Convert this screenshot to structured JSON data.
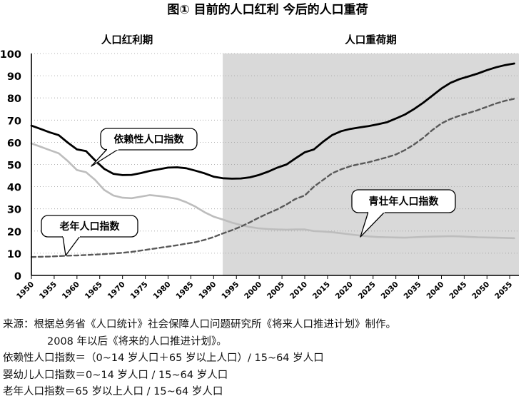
{
  "chart_data": {
    "type": "line",
    "title": "图① 目前的人口红利 今后的人口重荷",
    "period_labels": [
      "人口红利期",
      "人口重荷期"
    ],
    "shaded_from_year": 1992,
    "ylim": [
      0,
      100
    ],
    "yticks": [
      0,
      10,
      20,
      30,
      40,
      50,
      60,
      70,
      80,
      90,
      100
    ],
    "xlim": [
      1950,
      2057
    ],
    "xticks": [
      1950,
      1955,
      1960,
      1965,
      1970,
      1975,
      1980,
      1985,
      1990,
      1995,
      2000,
      2005,
      2010,
      2015,
      2020,
      2025,
      2030,
      2035,
      2040,
      2045,
      2050,
      2055
    ],
    "xtick_labels": [
      "1950",
      "1955",
      "1960",
      "1965",
      "1970",
      "1975",
      "1980",
      "1985",
      "1990",
      "1995",
      "2000",
      "2005",
      "2010",
      "2015",
      "2020",
      "2025",
      "2030",
      "2035",
      "2040",
      "2045",
      "2050",
      "2055"
    ],
    "series": [
      {
        "name": "依赖性人口指数",
        "color": "#000000",
        "style": "solid",
        "x": [
          1950,
          1952,
          1954,
          1956,
          1958,
          1960,
          1962,
          1964,
          1966,
          1968,
          1970,
          1972,
          1974,
          1976,
          1978,
          1980,
          1982,
          1984,
          1986,
          1988,
          1990,
          1992,
          1994,
          1996,
          1998,
          2000,
          2002,
          2004,
          2006,
          2008,
          2010,
          2012,
          2014,
          2016,
          2018,
          2020,
          2022,
          2024,
          2026,
          2028,
          2030,
          2032,
          2034,
          2036,
          2038,
          2040,
          2042,
          2044,
          2046,
          2048,
          2050,
          2052,
          2054,
          2056
        ],
        "values": [
          67.5,
          66,
          64.5,
          63.2,
          59.8,
          56.8,
          56,
          51.8,
          48,
          45.8,
          45.2,
          45.3,
          46.1,
          47.1,
          47.8,
          48.6,
          48.7,
          48.3,
          47.2,
          46,
          44.5,
          43.8,
          43.6,
          43.7,
          44.2,
          45.3,
          46.8,
          48.6,
          50,
          52.8,
          55.5,
          56.8,
          60.2,
          63.2,
          65,
          66,
          66.7,
          67.3,
          68.1,
          69,
          70.7,
          72.5,
          75,
          77.8,
          81,
          84.2,
          86.8,
          88.5,
          89.7,
          91,
          92.5,
          93.8,
          94.8,
          95.5
        ]
      },
      {
        "name": "青壮年人口指数",
        "color": "#bdbdbd",
        "style": "solid",
        "x": [
          1950,
          1952,
          1954,
          1956,
          1958,
          1960,
          1962,
          1964,
          1966,
          1968,
          1970,
          1972,
          1974,
          1976,
          1978,
          1980,
          1982,
          1984,
          1986,
          1988,
          1990,
          1992,
          1994,
          1996,
          1998,
          2000,
          2002,
          2004,
          2006,
          2008,
          2010,
          2012,
          2014,
          2016,
          2018,
          2020,
          2022,
          2024,
          2026,
          2028,
          2030,
          2032,
          2034,
          2036,
          2038,
          2040,
          2042,
          2044,
          2046,
          2048,
          2050,
          2052,
          2054,
          2056
        ],
        "values": [
          59.5,
          58,
          56.5,
          55,
          51.5,
          47.5,
          46.5,
          43,
          38.5,
          36,
          35,
          34.8,
          35.5,
          36.2,
          35.8,
          35.2,
          34.5,
          33,
          31,
          28.5,
          26.5,
          25.2,
          23.8,
          22.7,
          21.8,
          21.2,
          20.9,
          20.7,
          20.6,
          20.7,
          20.7,
          20,
          19.8,
          19.5,
          19,
          18.5,
          18,
          17.6,
          17.3,
          17.2,
          17.1,
          17,
          17.2,
          17.4,
          17.5,
          17.6,
          17.7,
          17.6,
          17.4,
          17.2,
          17.1,
          17,
          16.9,
          16.8
        ]
      },
      {
        "name": "老年人口指数",
        "color": "#595959",
        "style": "dashed",
        "x": [
          1950,
          1952,
          1954,
          1956,
          1958,
          1960,
          1962,
          1964,
          1966,
          1968,
          1970,
          1972,
          1974,
          1976,
          1978,
          1980,
          1982,
          1984,
          1986,
          1988,
          1990,
          1992,
          1994,
          1996,
          1998,
          2000,
          2002,
          2004,
          2006,
          2008,
          2010,
          2012,
          2014,
          2016,
          2018,
          2020,
          2022,
          2024,
          2026,
          2028,
          2030,
          2032,
          2034,
          2036,
          2038,
          2040,
          2042,
          2044,
          2046,
          2048,
          2050,
          2052,
          2054,
          2056
        ],
        "values": [
          8.3,
          8.4,
          8.5,
          8.7,
          8.9,
          9,
          9.2,
          9.4,
          9.6,
          9.9,
          10.2,
          10.6,
          11.2,
          11.8,
          12.4,
          13,
          13.6,
          14.3,
          15,
          16,
          17.3,
          18.9,
          20.4,
          22,
          24,
          26.1,
          28,
          29.8,
          32,
          34.5,
          36,
          40,
          43,
          46,
          47.8,
          49.2,
          50.2,
          51,
          52.1,
          53.2,
          54.5,
          56.5,
          59,
          62,
          65.5,
          68.5,
          70.5,
          72,
          73.2,
          74.5,
          76,
          77.5,
          78.7,
          79.6
        ]
      }
    ],
    "annotations": [
      "依赖性人口指数",
      "老年人口指数",
      "青壮年人口指数"
    ]
  },
  "notes": [
    "来源：根据总务省《人口统计》社会保障人口问题研究所《将来人口推进计划》制作。",
    "2008 年以后《将来的人口推进计划》。",
    "依赖性人口指数＝（0~14 岁人口＋65 岁以上人口）/ 15~64 岁人口",
    "婴幼儿人口指数＝0~14 岁人口 / 15~64 岁人口",
    "老年人口指数＝65 岁以上人口 / 15~64 岁人口"
  ]
}
